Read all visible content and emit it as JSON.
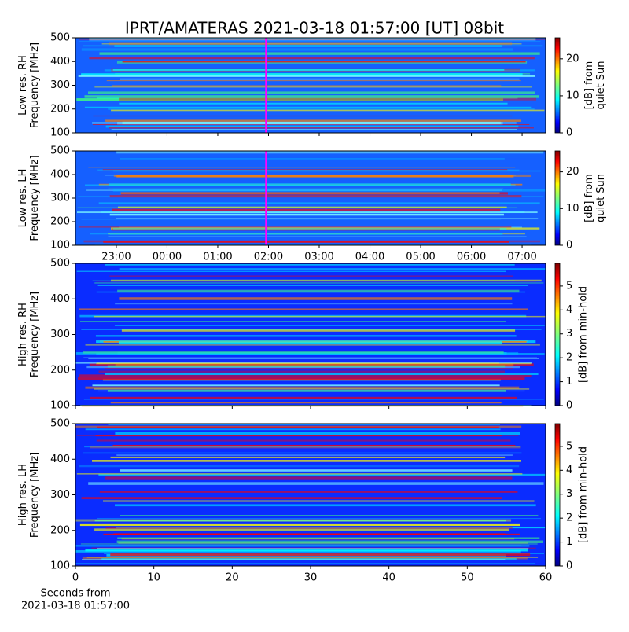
{
  "chart_data": [
    {
      "type": "heatmap",
      "title": "IPRT/AMATERAS 2021-03-18 01:57:00 [UT]   08bit",
      "ylabel": [
        "Low res. RH",
        "Frequency [MHz]"
      ],
      "ylim": [
        100,
        500
      ],
      "yticks": [
        100,
        200,
        300,
        400,
        500
      ],
      "marker": 1.95,
      "marker_color": "#ff00ff",
      "colorbar": {
        "label": [
          "[dB] from",
          "quiet Sun"
        ],
        "lim": [
          0,
          25.7
        ],
        "ticks": [
          0,
          10,
          20
        ]
      }
    },
    {
      "type": "heatmap",
      "ylabel": [
        "Low res. LH",
        "Frequency [MHz]"
      ],
      "ylim": [
        100,
        500
      ],
      "yticks": [
        100,
        200,
        300,
        400,
        500
      ],
      "marker": 1.95,
      "marker_color": "#ff00ff",
      "xlim": [
        -1.805,
        7.464
      ],
      "xticks": [
        {
          "value": -1,
          "label": "23:00"
        },
        {
          "value": 0,
          "label": "00:00"
        },
        {
          "value": 1,
          "label": "01:00"
        },
        {
          "value": 2,
          "label": "02:00"
        },
        {
          "value": 3,
          "label": "03:00"
        },
        {
          "value": 4,
          "label": "04:00"
        },
        {
          "value": 5,
          "label": "05:00"
        },
        {
          "value": 6,
          "label": "06:00"
        },
        {
          "value": 7,
          "label": "07:00"
        }
      ],
      "colorbar": {
        "label": [
          "[dB] from",
          "quiet Sun"
        ],
        "lim": [
          0,
          25.7
        ],
        "ticks": [
          0,
          10,
          20
        ]
      }
    },
    {
      "type": "heatmap",
      "ylabel": [
        "High res. RH",
        "Frequency [MHz]"
      ],
      "ylim": [
        100,
        500
      ],
      "yticks": [
        100,
        200,
        300,
        400,
        500
      ],
      "colorbar": {
        "label": [
          "[dB] from min-hold"
        ],
        "lim": [
          0,
          5.95
        ],
        "ticks": [
          0,
          1,
          2,
          3,
          4,
          5
        ]
      }
    },
    {
      "type": "heatmap",
      "ylabel": [
        "High res. LH",
        "Frequency [MHz]"
      ],
      "ylim": [
        100,
        500
      ],
      "yticks": [
        100,
        200,
        300,
        400,
        500
      ],
      "xlim": [
        0,
        60
      ],
      "xticks": [
        0,
        10,
        20,
        30,
        40,
        50,
        60
      ],
      "xlabel": [
        "Seconds from",
        "2021-03-18 01:57:00"
      ],
      "colorbar": {
        "label": [
          "[dB] from min-hold"
        ],
        "lim": [
          0,
          5.95
        ],
        "ticks": [
          0,
          1,
          2,
          3,
          4,
          5
        ]
      }
    }
  ]
}
